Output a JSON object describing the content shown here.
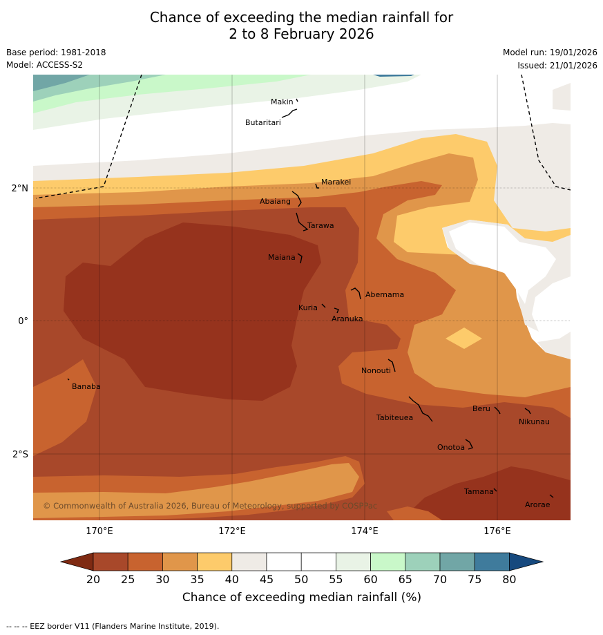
{
  "header": {
    "title_line1": "Chance of exceeding the median rainfall for",
    "title_line2": "2 to 8 February 2026",
    "base_period": "Base period: 1981-2018",
    "model": "Model: ACCESS-S2",
    "model_run": "Model run: 19/01/2026",
    "issued": "Issued: 21/01/2026"
  },
  "map": {
    "lat_labels": [
      "2°N",
      "0°",
      "2°S"
    ],
    "lon_labels": [
      "170°E",
      "172°E",
      "174°E",
      "176°E"
    ],
    "copyright": "© Commonwealth of Australia 2026, Bureau of Meteorology, supported by COSPPac",
    "places": [
      "Makin",
      "Butaritari",
      "Marakei",
      "Abaiang",
      "Tarawa",
      "Maiana",
      "Abemama",
      "Kuria",
      "Aranuka",
      "Nonouti",
      "Banaba",
      "Beru",
      "Nikunau",
      "Tabiteuea",
      "Onotoa",
      "Tamana",
      "Arorae"
    ],
    "colors": {
      "lt20": "#7f2a12",
      "c20": "#a8482a",
      "c25": "#c8632f",
      "c30": "#e0964a",
      "c35": "#fdcb6b",
      "c40": "#efebe6",
      "c45": "#ffffff",
      "c50": "#ffffff",
      "c55": "#e9f3e6",
      "c60": "#c9f8c9",
      "c65": "#9dd1ba",
      "c70": "#71a6a6",
      "c75": "#3f7b9c",
      "gt80": "#16497e",
      "core": "#96331d"
    }
  },
  "colorbar": {
    "ticks": [
      "20",
      "25",
      "30",
      "35",
      "40",
      "45",
      "50",
      "55",
      "60",
      "65",
      "70",
      "75",
      "80"
    ],
    "label": "Chance of exceeding median rainfall (%)"
  },
  "footer": "--  --  -- EEZ border V11 (Flanders Marine Institute, 2019)."
}
